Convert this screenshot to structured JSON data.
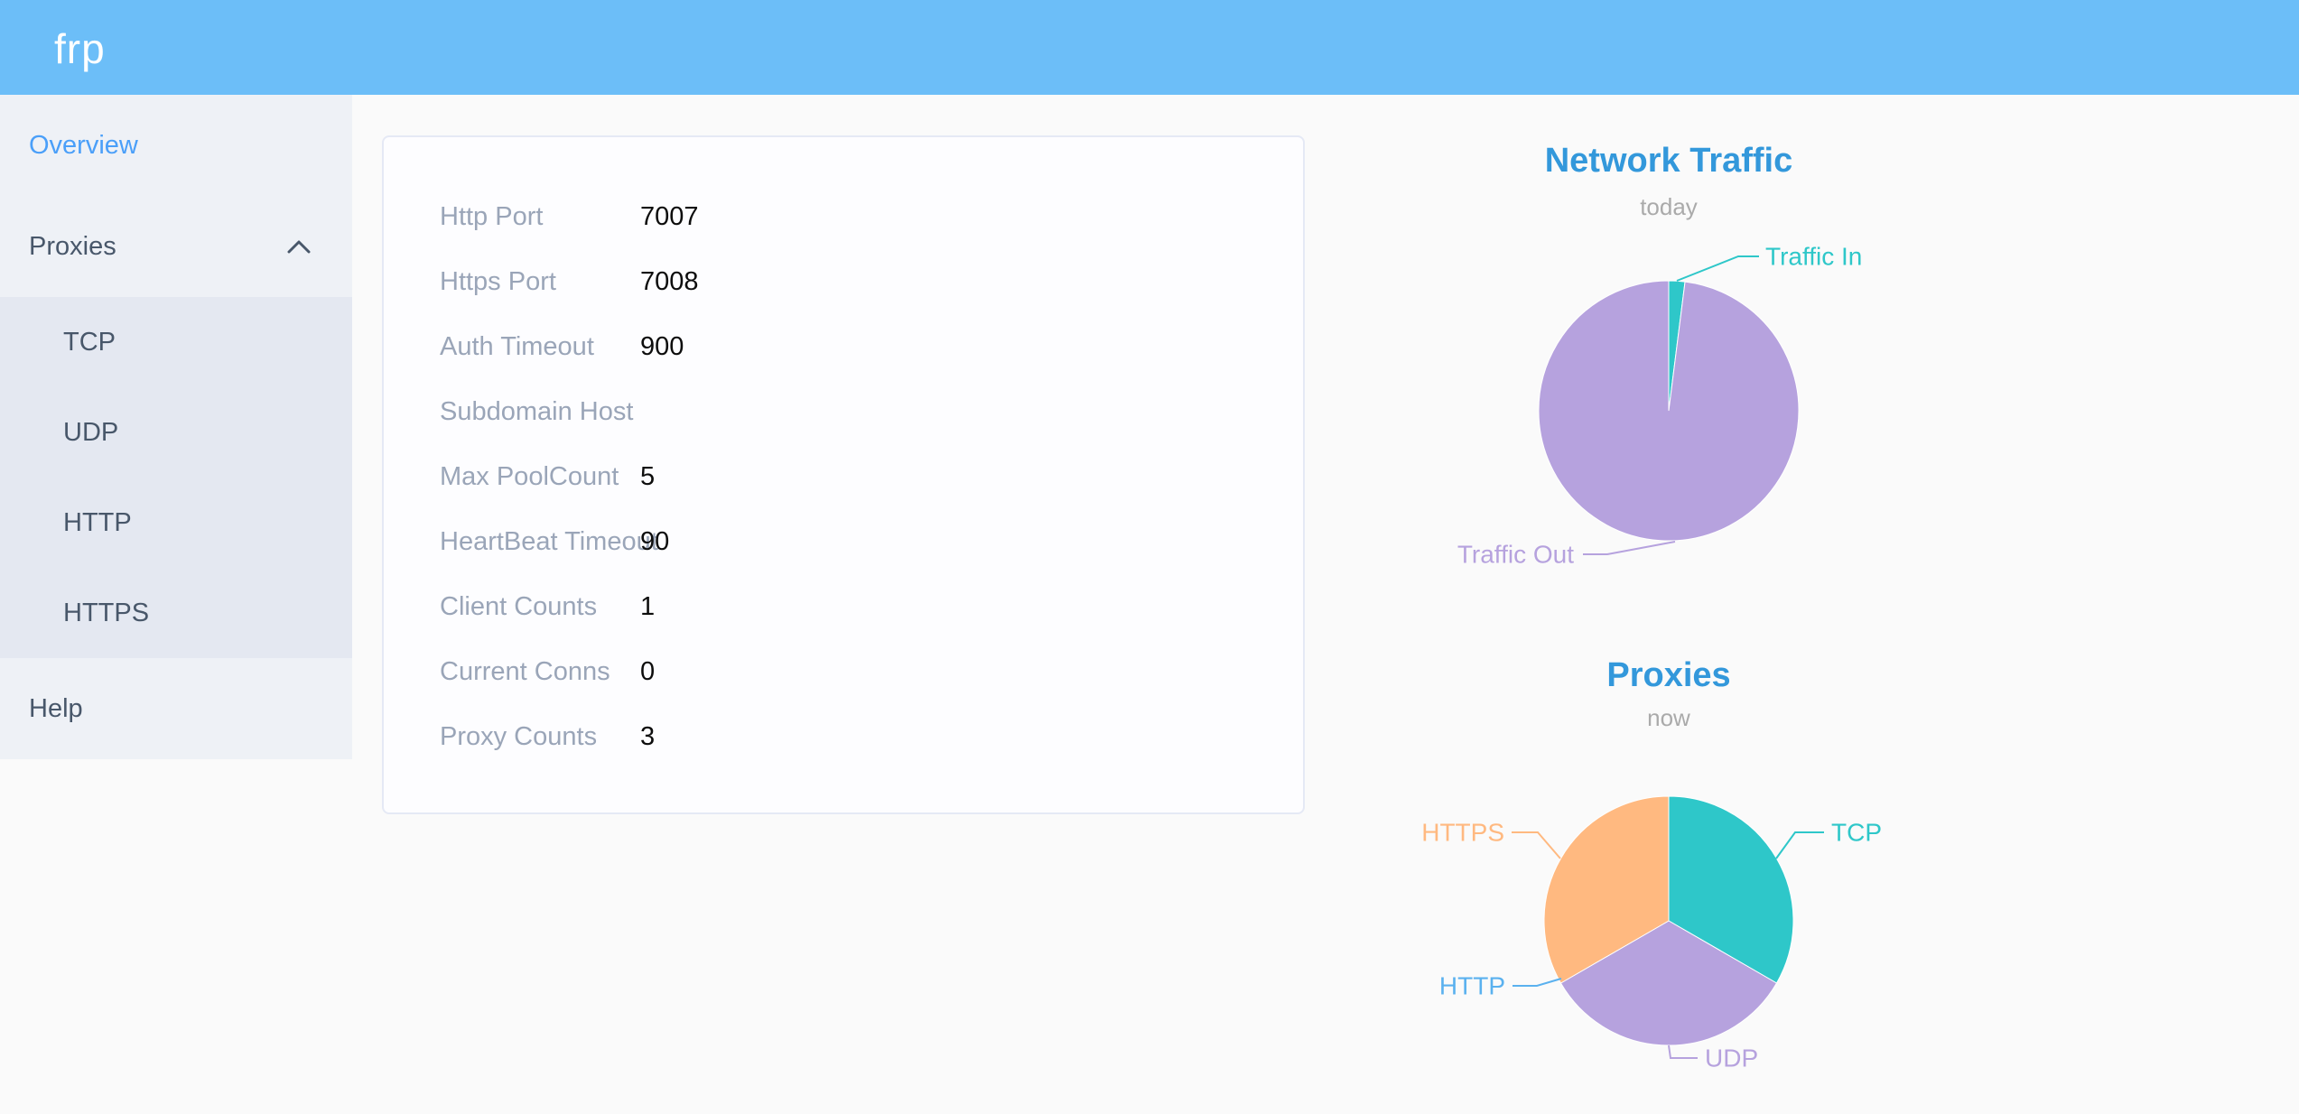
{
  "app": {
    "logo_text": "frp"
  },
  "colors": {
    "header_bg": "#6cbef8",
    "page_bg": "#fafafa",
    "sidebar_bg": "#eef1f6",
    "submenu_bg": "#e4e8f1",
    "menu_text": "#48576a",
    "menu_active_text": "#4a9ff9",
    "card_border": "#e5e9f5",
    "label_text": "#9aa5b8",
    "value_text": "#0d0d0d",
    "chart_title": "#3398db",
    "chart_subtitle": "#aaaaaa"
  },
  "sidebar": {
    "overview_label": "Overview",
    "proxies_label": "Proxies",
    "proxies_state": "expanded",
    "submenu": [
      {
        "label": "TCP"
      },
      {
        "label": "UDP"
      },
      {
        "label": "HTTP"
      },
      {
        "label": "HTTPS"
      }
    ],
    "help_label": "Help"
  },
  "server_info": {
    "rows": [
      {
        "label": "Http Port",
        "value": "7007"
      },
      {
        "label": "Https Port",
        "value": "7008"
      },
      {
        "label": "Auth Timeout",
        "value": "900"
      },
      {
        "label": "Subdomain Host",
        "value": ""
      },
      {
        "label": "Max PoolCount",
        "value": "5"
      },
      {
        "label": "HeartBeat Timeout",
        "value": "90"
      },
      {
        "label": "Client Counts",
        "value": "1"
      },
      {
        "label": "Current Conns",
        "value": "0"
      },
      {
        "label": "Proxy Counts",
        "value": "3"
      }
    ]
  },
  "chart_data": [
    {
      "type": "pie",
      "title": "Network Traffic",
      "subtitle": "today",
      "legend_position": "none",
      "label_style": "outside-with-leader-lines",
      "values_are": "percent estimated from slice angles",
      "items": [
        {
          "label": "Traffic In",
          "value": 2,
          "color": "#2ec7c9"
        },
        {
          "label": "Traffic Out",
          "value": 98,
          "color": "#b6a2de"
        }
      ]
    },
    {
      "type": "pie",
      "title": "Proxies",
      "subtitle": "now",
      "legend_position": "none",
      "label_style": "outside-with-leader-lines",
      "values_are": "proxy counts per type",
      "items": [
        {
          "label": "TCP",
          "value": 1,
          "color": "#2ec7c9"
        },
        {
          "label": "UDP",
          "value": 1,
          "color": "#b6a2de"
        },
        {
          "label": "HTTP",
          "value": 0,
          "color": "#5ab1ef"
        },
        {
          "label": "HTTPS",
          "value": 1,
          "color": "#ffb980"
        }
      ]
    }
  ]
}
